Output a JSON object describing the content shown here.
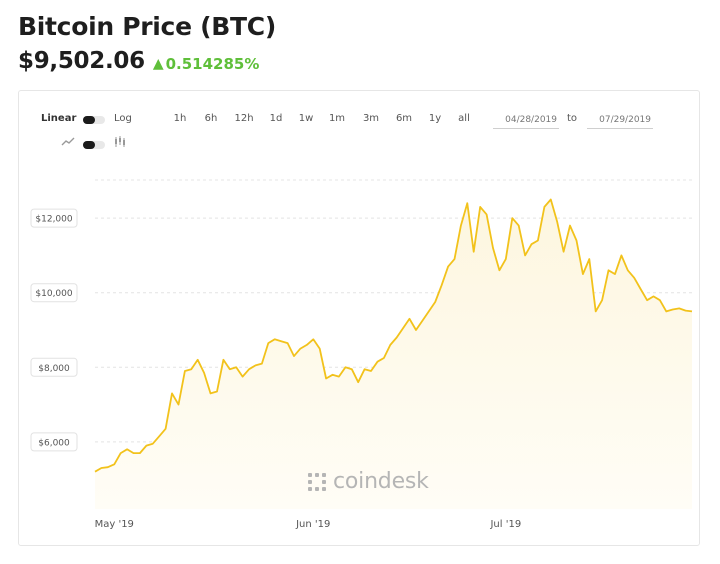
{
  "header": {
    "title": "Bitcoin Price (BTC)",
    "price": "$9,502.06",
    "change": "0.514285%",
    "change_color": "#5fbf3a"
  },
  "controls": {
    "scale_linear": "Linear",
    "scale_log": "Log",
    "ranges": [
      "1h",
      "6h",
      "12h",
      "1d",
      "1w",
      "1m",
      "3m",
      "6m",
      "1y",
      "all"
    ],
    "date_from": "04/28/2019",
    "date_to": "07/29/2019",
    "to_label": "to",
    "line_icon": "line-chart-icon",
    "candle_icon": "candlestick-icon"
  },
  "watermark": {
    "text": "coindesk",
    "logo_icon": "coindesk-logo-icon"
  },
  "chart_data": {
    "type": "area",
    "line_color": "#f2c21b",
    "fill_color": "#fdf6df",
    "x_tick_labels": [
      "May '19",
      "Jun '19",
      "Jul '19"
    ],
    "x_tick_days": [
      3,
      34,
      64
    ],
    "y_tick_labels": [
      "$12,000",
      "$10,000",
      "$8,000",
      "$6,000"
    ],
    "y_tick_values": [
      12000,
      10000,
      8000,
      6000
    ],
    "ylim": [
      4200,
      13800
    ],
    "xlim_days": [
      0,
      93
    ],
    "grid": "horizontal-dashed",
    "x": [
      0,
      1,
      2,
      3,
      4,
      5,
      6,
      7,
      8,
      9,
      10,
      11,
      12,
      13,
      14,
      15,
      16,
      17,
      18,
      19,
      20,
      21,
      22,
      23,
      24,
      25,
      26,
      27,
      28,
      29,
      30,
      31,
      32,
      33,
      34,
      35,
      36,
      37,
      38,
      39,
      40,
      41,
      42,
      43,
      44,
      45,
      46,
      47,
      48,
      49,
      50,
      51,
      52,
      53,
      54,
      55,
      56,
      57,
      58,
      59,
      60,
      61,
      62,
      63,
      64,
      65,
      66,
      67,
      68,
      69,
      70,
      71,
      72,
      73,
      74,
      75,
      76,
      77,
      78,
      79,
      80,
      81,
      82,
      83,
      84,
      85,
      86,
      87,
      88,
      89,
      90,
      91,
      92,
      93
    ],
    "values": [
      5200,
      5300,
      5320,
      5400,
      5700,
      5800,
      5700,
      5700,
      5900,
      5950,
      6150,
      6350,
      7300,
      7000,
      7900,
      7950,
      8200,
      7850,
      7300,
      7350,
      8200,
      7950,
      8000,
      7750,
      7950,
      8050,
      8100,
      8650,
      8750,
      8700,
      8650,
      8300,
      8500,
      8600,
      8750,
      8500,
      7700,
      7800,
      7750,
      8000,
      7950,
      7600,
      7950,
      7900,
      8150,
      8250,
      8600,
      8800,
      9050,
      9300,
      9000,
      9250,
      9500,
      9750,
      10200,
      10700,
      10900,
      11800,
      12400,
      11100,
      12300,
      12100,
      11200,
      10600,
      10900,
      12000,
      11800,
      11000,
      11300,
      11400,
      12300,
      12500,
      11900,
      11100,
      11800,
      11400,
      10500,
      10900,
      9500,
      9800,
      10600,
      10500,
      11000,
      10600,
      10400,
      10100,
      9800,
      9900,
      9800,
      9500,
      9550,
      9580,
      9520,
      9500
    ]
  }
}
